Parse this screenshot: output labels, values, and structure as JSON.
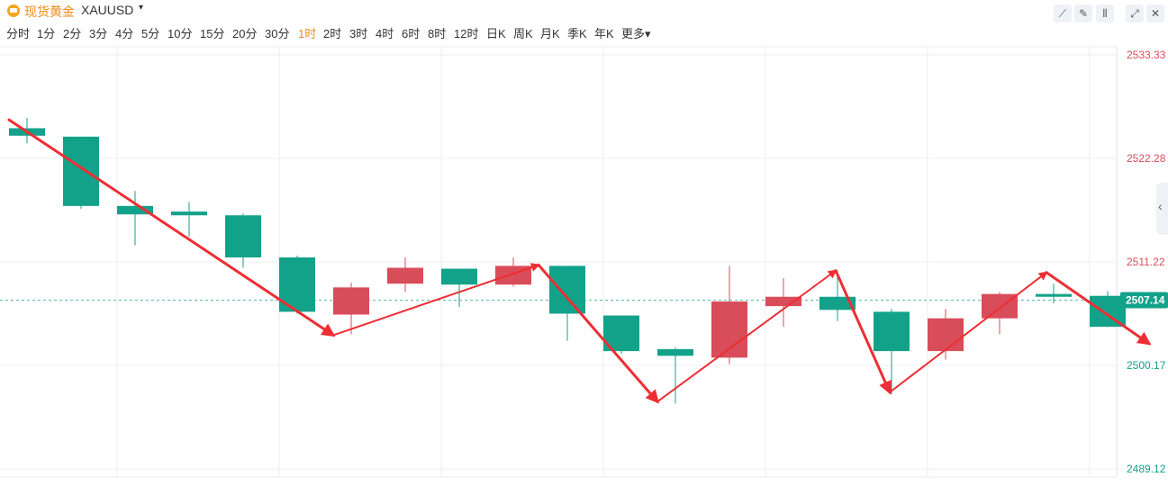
{
  "header": {
    "title": "现货黄金",
    "symbol": "XAUUSD",
    "caret": "▾"
  },
  "toolbar": [
    {
      "name": "line-tool-icon",
      "glyph": "⟋"
    },
    {
      "name": "pen-icon",
      "glyph": "✎"
    },
    {
      "name": "candle-settings-icon",
      "glyph": "⫴"
    },
    {
      "name": "fullscreen-icon",
      "glyph": "⤢"
    },
    {
      "name": "close-icon",
      "glyph": "✕"
    }
  ],
  "periods": [
    "分时",
    "1分",
    "2分",
    "3分",
    "4分",
    "5分",
    "10分",
    "15分",
    "20分",
    "30分",
    "1时",
    "2时",
    "3时",
    "4时",
    "6时",
    "8时",
    "12时",
    "日K",
    "周K",
    "月K",
    "季K",
    "年K",
    "更多▾"
  ],
  "active_period": "1时",
  "side_tab_glyph": "‹",
  "chart_data": {
    "type": "candlestick",
    "y_ticks": [
      "2533.33",
      "2522.28",
      "2511.22",
      "2500.17",
      "2489.12"
    ],
    "ylim": [
      2489.12,
      2533.33
    ],
    "current_price": "2507.14",
    "colors": {
      "up": "#d94c59",
      "down": "#12a28a",
      "arrow": "#ee2e34",
      "current": "#12a28a",
      "grid": "#eeeeee"
    },
    "candles": [
      {
        "open": 2525.5,
        "close": 2524.7,
        "high": 2526.6,
        "low": 2523.9
      },
      {
        "open": 2524.6,
        "close": 2517.2,
        "high": 2524.6,
        "low": 2516.9
      },
      {
        "open": 2517.2,
        "close": 2516.3,
        "high": 2518.8,
        "low": 2513.0
      },
      {
        "open": 2516.6,
        "close": 2516.2,
        "high": 2517.6,
        "low": 2513.9
      },
      {
        "open": 2516.2,
        "close": 2511.7,
        "high": 2516.4,
        "low": 2510.6
      },
      {
        "open": 2511.7,
        "close": 2505.9,
        "high": 2511.9,
        "low": 2505.7
      },
      {
        "open": 2505.6,
        "close": 2508.5,
        "high": 2509.0,
        "low": 2503.5
      },
      {
        "open": 2508.9,
        "close": 2510.6,
        "high": 2511.7,
        "low": 2508.0
      },
      {
        "open": 2510.5,
        "close": 2508.8,
        "high": 2510.5,
        "low": 2506.4
      },
      {
        "open": 2508.8,
        "close": 2510.8,
        "high": 2511.7,
        "low": 2508.6
      },
      {
        "open": 2510.8,
        "close": 2505.7,
        "high": 2510.8,
        "low": 2502.8
      },
      {
        "open": 2505.5,
        "close": 2501.7,
        "high": 2505.5,
        "low": 2501.4
      },
      {
        "open": 2501.9,
        "close": 2501.2,
        "high": 2502.1,
        "low": 2496.1
      },
      {
        "open": 2501.0,
        "close": 2507.0,
        "high": 2510.8,
        "low": 2500.3
      },
      {
        "open": 2506.5,
        "close": 2507.5,
        "high": 2509.5,
        "low": 2504.3
      },
      {
        "open": 2507.5,
        "close": 2506.1,
        "high": 2510.3,
        "low": 2504.9
      },
      {
        "open": 2505.9,
        "close": 2501.7,
        "high": 2506.2,
        "low": 2497.1
      },
      {
        "open": 2501.7,
        "close": 2505.2,
        "high": 2506.2,
        "low": 2500.8
      },
      {
        "open": 2505.2,
        "close": 2507.8,
        "high": 2508.0,
        "low": 2503.5
      },
      {
        "open": 2507.8,
        "close": 2507.5,
        "high": 2508.9,
        "low": 2506.8
      },
      {
        "open": 2507.6,
        "close": 2504.3,
        "high": 2508.1,
        "low": 2504.3
      }
    ],
    "arrows": [
      [
        [
          2526.4,
          0
        ],
        [
          2503.4,
          6
        ],
        [
          2510.9,
          9.8
        ]
      ],
      [
        [
          2510.9,
          9.8
        ],
        [
          2496.3,
          12.0
        ],
        [
          2510.3,
          15.3
        ]
      ],
      [
        [
          2510.3,
          15.3
        ],
        [
          2497.3,
          16.3
        ],
        [
          2510.1,
          19.2
        ]
      ],
      [
        [
          2510.1,
          19.2
        ],
        [
          2502.5,
          21.1
        ]
      ]
    ]
  }
}
